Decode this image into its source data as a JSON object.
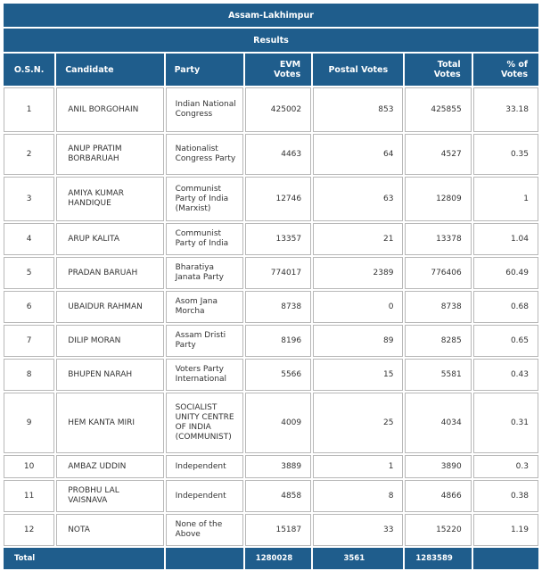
{
  "table_title": "Assam-Lakhimpur",
  "subtitle": "Results",
  "columns": {
    "osn": "O.S.N.",
    "candidate": "Candidate",
    "party": "Party",
    "evm_votes": "EVM Votes",
    "postal_votes": "Postal Votes",
    "total_votes": "Total Votes",
    "pct_votes": "% of Votes"
  },
  "rows": [
    {
      "osn": "1",
      "candidate": "ANIL BORGOHAIN",
      "party": "Indian National Congress",
      "evm": "425002",
      "postal": "853",
      "total": "425855",
      "pct": "33.18"
    },
    {
      "osn": "2",
      "candidate": "ANUP PRATIM BORBARUAH",
      "party": "Nationalist Congress Party",
      "evm": "4463",
      "postal": "64",
      "total": "4527",
      "pct": "0.35"
    },
    {
      "osn": "3",
      "candidate": "AMIYA KUMAR HANDIQUE",
      "party": "Communist Party of India (Marxist)",
      "evm": "12746",
      "postal": "63",
      "total": "12809",
      "pct": "1"
    },
    {
      "osn": "4",
      "candidate": "ARUP KALITA",
      "party": "Communist Party of India",
      "evm": "13357",
      "postal": "21",
      "total": "13378",
      "pct": "1.04"
    },
    {
      "osn": "5",
      "candidate": "PRADAN BARUAH",
      "party": "Bharatiya Janata Party",
      "evm": "774017",
      "postal": "2389",
      "total": "776406",
      "pct": "60.49"
    },
    {
      "osn": "6",
      "candidate": "UBAIDUR RAHMAN",
      "party": "Asom Jana Morcha",
      "evm": "8738",
      "postal": "0",
      "total": "8738",
      "pct": "0.68"
    },
    {
      "osn": "7",
      "candidate": "DILIP MORAN",
      "party": "Assam Dristi Party",
      "evm": "8196",
      "postal": "89",
      "total": "8285",
      "pct": "0.65"
    },
    {
      "osn": "8",
      "candidate": "BHUPEN NARAH",
      "party": "Voters Party International",
      "evm": "5566",
      "postal": "15",
      "total": "5581",
      "pct": "0.43"
    },
    {
      "osn": "9",
      "candidate": "HEM KANTA MIRI",
      "party": "SOCIALIST UNITY CENTRE OF INDIA (COMMUNIST)",
      "evm": "4009",
      "postal": "25",
      "total": "4034",
      "pct": "0.31"
    },
    {
      "osn": "10",
      "candidate": "AMBAZ UDDIN",
      "party": "Independent",
      "evm": "3889",
      "postal": "1",
      "total": "3890",
      "pct": "0.3"
    },
    {
      "osn": "11",
      "candidate": "PROBHU LAL VAISNAVA",
      "party": "Independent",
      "evm": "4858",
      "postal": "8",
      "total": "4866",
      "pct": "0.38"
    },
    {
      "osn": "12",
      "candidate": "NOTA",
      "party": "None of the Above",
      "evm": "15187",
      "postal": "33",
      "total": "15220",
      "pct": "1.19"
    }
  ],
  "totals": {
    "label": "Total",
    "evm": "1280028",
    "postal": "3561",
    "total": "1283589",
    "pct": ""
  }
}
